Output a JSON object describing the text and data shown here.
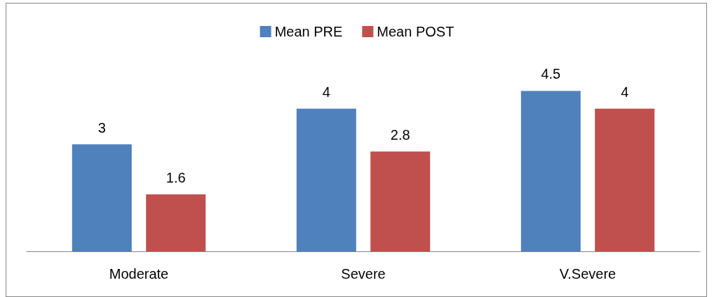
{
  "chart_data": {
    "type": "bar",
    "categories": [
      "Moderate",
      "Severe",
      "V.Severe"
    ],
    "series": [
      {
        "name": "Mean PRE",
        "color": "#4f81bd",
        "values": [
          3,
          4,
          4.5
        ]
      },
      {
        "name": "Mean POST",
        "color": "#c0504d",
        "values": [
          1.6,
          2.8,
          4
        ]
      }
    ],
    "data_labels": true,
    "legend": "top",
    "grid": false
  }
}
